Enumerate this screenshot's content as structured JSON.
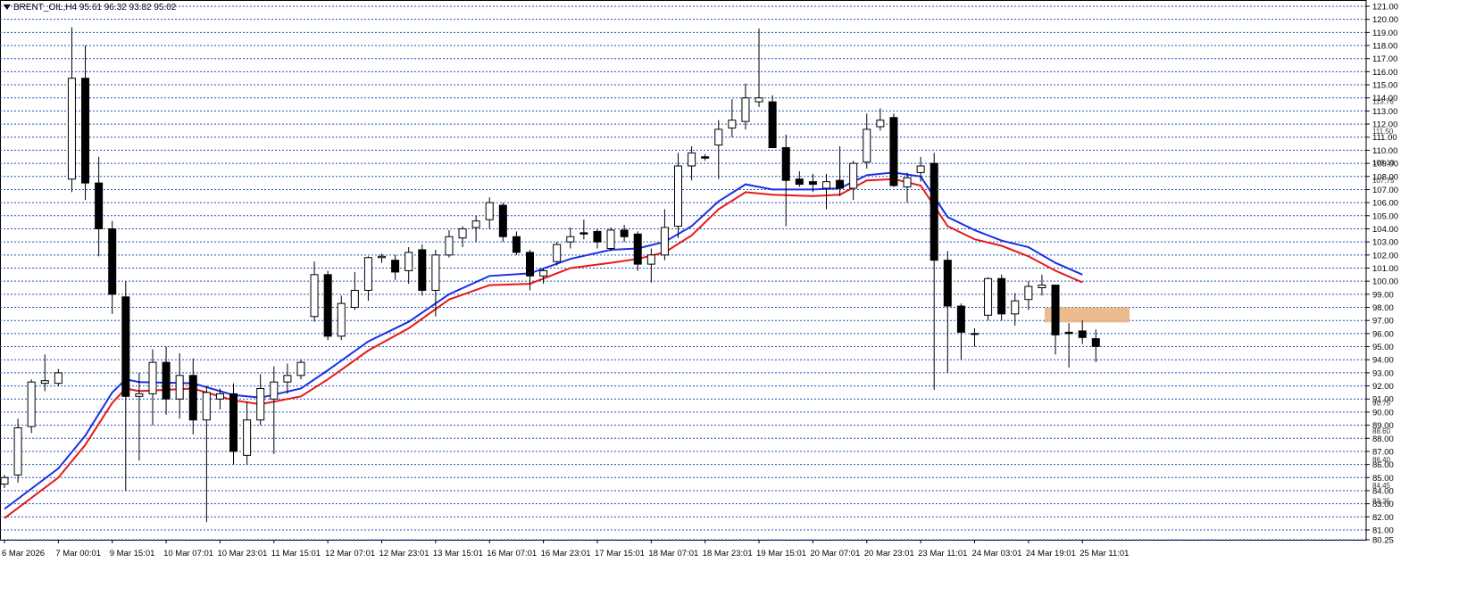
{
  "window": {
    "title": "BRENT_OIL,H4",
    "ohlc": "95.61 96.32 93.82 95.02"
  },
  "colors": {
    "background": "#ffffff",
    "grid": "#1f4fbf",
    "candle_border": "#000000",
    "bull_fill": "#ffffff",
    "bear_fill": "#000000",
    "ma_fast": "#1a2fe6",
    "ma_slow": "#e81818",
    "zone": "#e8b27a"
  },
  "chart_data": {
    "type": "candlestick",
    "symbol": "BRENT_OIL",
    "timeframe": "H4",
    "ylim": [
      80.25,
      121.0
    ],
    "grid": true,
    "y_ticks": [
      121.0,
      120.0,
      119.0,
      118.0,
      117.0,
      116.0,
      115.0,
      114.0,
      113.0,
      112.0,
      111.0,
      110.0,
      109.0,
      108.0,
      107.0,
      106.0,
      105.0,
      104.0,
      103.0,
      102.0,
      101.0,
      100.0,
      99.0,
      98.0,
      97.0,
      96.0,
      95.0,
      94.0,
      93.0,
      92.0,
      91.0,
      90.0,
      89.0,
      88.0,
      87.0,
      86.0,
      85.0,
      84.0,
      83.0,
      82.0,
      81.0,
      80.25
    ],
    "y_tick_labels": [
      "121.00",
      "120.00",
      "119.00",
      "118.00",
      "117.00",
      "116.00",
      "115.00",
      "114.00",
      "113.00",
      "112.00",
      "111.00",
      "110.00",
      "109.00",
      "108.00",
      "107.00",
      "106.00",
      "105.00",
      "104.00",
      "103.00",
      "102.00",
      "101.00",
      "100.00",
      "99.00",
      "98.00",
      "97.00",
      "96.00",
      "95.00",
      "94.00",
      "93.00",
      "92.00",
      "91.00",
      "90.00",
      "89.00",
      "88.00",
      "87.00",
      "86.00",
      "85.00",
      "84.00",
      "83.00",
      "82.00",
      "81.00",
      "80.25"
    ],
    "x_labels": [
      {
        "label": "6 Mar 2026",
        "bar": 0
      },
      {
        "label": "7 Mar 00:01",
        "bar": 4
      },
      {
        "label": "9 Mar 15:01",
        "bar": 8
      },
      {
        "label": "10 Mar 07:01",
        "bar": 12
      },
      {
        "label": "10 Mar 23:01",
        "bar": 16
      },
      {
        "label": "11 Mar 15:01",
        "bar": 20
      },
      {
        "label": "12 Mar 07:01",
        "bar": 24
      },
      {
        "label": "12 Mar 23:01",
        "bar": 28
      },
      {
        "label": "13 Mar 15:01",
        "bar": 32
      },
      {
        "label": "16 Mar 07:01",
        "bar": 36
      },
      {
        "label": "16 Mar 23:01",
        "bar": 40
      },
      {
        "label": "17 Mar 15:01",
        "bar": 44
      },
      {
        "label": "18 Mar 07:01",
        "bar": 48
      },
      {
        "label": "18 Mar 23:01",
        "bar": 52
      },
      {
        "label": "19 Mar 15:01",
        "bar": 56
      },
      {
        "label": "20 Mar 07:01",
        "bar": 60
      },
      {
        "label": "20 Mar 23:01",
        "bar": 64
      },
      {
        "label": "23 Mar 11:01",
        "bar": 68
      },
      {
        "label": "24 Mar 03:01",
        "bar": 72
      },
      {
        "label": "24 Mar 19:01",
        "bar": 76
      },
      {
        "label": "25 Mar 11:01",
        "bar": 80
      }
    ],
    "candles": [
      {
        "o": 84.5,
        "h": 85.2,
        "l": 84.2,
        "c": 85.0
      },
      {
        "o": 85.2,
        "h": 89.5,
        "l": 84.6,
        "c": 88.8
      },
      {
        "o": 88.9,
        "h": 92.5,
        "l": 88.4,
        "c": 92.3
      },
      {
        "o": 92.2,
        "h": 94.4,
        "l": 91.6,
        "c": 92.4
      },
      {
        "o": 92.2,
        "h": 93.3,
        "l": 92.0,
        "c": 93.0
      },
      {
        "o": 107.8,
        "h": 119.4,
        "l": 106.8,
        "c": 115.5
      },
      {
        "o": 115.5,
        "h": 118.0,
        "l": 106.2,
        "c": 107.5
      },
      {
        "o": 107.5,
        "h": 109.5,
        "l": 101.9,
        "c": 104.0
      },
      {
        "o": 104.0,
        "h": 104.6,
        "l": 97.5,
        "c": 99.0
      },
      {
        "o": 98.8,
        "h": 100.0,
        "l": 84.0,
        "c": 91.2
      },
      {
        "o": 91.2,
        "h": 93.0,
        "l": 86.3,
        "c": 91.4
      },
      {
        "o": 91.4,
        "h": 94.8,
        "l": 89.0,
        "c": 93.8
      },
      {
        "o": 93.8,
        "h": 95.0,
        "l": 89.8,
        "c": 91.0
      },
      {
        "o": 91.0,
        "h": 94.5,
        "l": 89.5,
        "c": 92.8
      },
      {
        "o": 92.8,
        "h": 94.1,
        "l": 88.3,
        "c": 89.4
      },
      {
        "o": 89.4,
        "h": 92.0,
        "l": 81.6,
        "c": 91.5
      },
      {
        "o": 91.0,
        "h": 91.8,
        "l": 90.2,
        "c": 91.4
      },
      {
        "o": 91.4,
        "h": 92.2,
        "l": 86.0,
        "c": 87.0
      },
      {
        "o": 86.7,
        "h": 90.8,
        "l": 86.0,
        "c": 89.4
      },
      {
        "o": 89.4,
        "h": 92.9,
        "l": 89.0,
        "c": 91.8
      },
      {
        "o": 91.0,
        "h": 93.5,
        "l": 86.8,
        "c": 92.3
      },
      {
        "o": 92.3,
        "h": 93.7,
        "l": 91.4,
        "c": 92.8
      },
      {
        "o": 92.8,
        "h": 94.0,
        "l": 92.5,
        "c": 93.8
      },
      {
        "o": 97.3,
        "h": 101.5,
        "l": 96.9,
        "c": 100.5
      },
      {
        "o": 100.5,
        "h": 100.8,
        "l": 95.5,
        "c": 95.8
      },
      {
        "o": 95.8,
        "h": 98.9,
        "l": 95.5,
        "c": 98.3
      },
      {
        "o": 98.0,
        "h": 100.7,
        "l": 97.8,
        "c": 99.3
      },
      {
        "o": 99.3,
        "h": 101.9,
        "l": 98.5,
        "c": 101.8
      },
      {
        "o": 101.8,
        "h": 102.1,
        "l": 101.4,
        "c": 101.9
      },
      {
        "o": 101.6,
        "h": 102.0,
        "l": 100.1,
        "c": 100.7
      },
      {
        "o": 100.8,
        "h": 102.6,
        "l": 99.8,
        "c": 102.2
      },
      {
        "o": 102.4,
        "h": 102.8,
        "l": 98.9,
        "c": 99.3
      },
      {
        "o": 99.3,
        "h": 102.4,
        "l": 97.3,
        "c": 102.0
      },
      {
        "o": 102.0,
        "h": 103.9,
        "l": 101.8,
        "c": 103.4
      },
      {
        "o": 103.3,
        "h": 104.2,
        "l": 102.6,
        "c": 104.0
      },
      {
        "o": 104.1,
        "h": 105.0,
        "l": 103.0,
        "c": 104.6
      },
      {
        "o": 104.7,
        "h": 106.4,
        "l": 104.0,
        "c": 106.0
      },
      {
        "o": 105.8,
        "h": 106.0,
        "l": 103.0,
        "c": 103.4
      },
      {
        "o": 103.4,
        "h": 103.8,
        "l": 102.0,
        "c": 102.2
      },
      {
        "o": 102.2,
        "h": 102.4,
        "l": 99.3,
        "c": 100.4
      },
      {
        "o": 100.4,
        "h": 101.0,
        "l": 99.8,
        "c": 100.8
      },
      {
        "o": 101.5,
        "h": 103.0,
        "l": 101.2,
        "c": 102.8
      },
      {
        "o": 103.0,
        "h": 104.1,
        "l": 102.5,
        "c": 103.4
      },
      {
        "o": 103.7,
        "h": 104.7,
        "l": 103.2,
        "c": 103.6
      },
      {
        "o": 103.8,
        "h": 104.0,
        "l": 102.5,
        "c": 103.0
      },
      {
        "o": 102.5,
        "h": 104.1,
        "l": 102.3,
        "c": 103.9
      },
      {
        "o": 103.9,
        "h": 104.3,
        "l": 103.0,
        "c": 103.4
      },
      {
        "o": 103.6,
        "h": 103.8,
        "l": 100.8,
        "c": 101.3
      },
      {
        "o": 101.3,
        "h": 102.5,
        "l": 99.9,
        "c": 102.0
      },
      {
        "o": 102.0,
        "h": 105.5,
        "l": 101.6,
        "c": 104.1
      },
      {
        "o": 104.2,
        "h": 109.8,
        "l": 103.3,
        "c": 108.8
      },
      {
        "o": 108.8,
        "h": 110.3,
        "l": 107.7,
        "c": 109.8
      },
      {
        "o": 109.5,
        "h": 109.7,
        "l": 109.2,
        "c": 109.4
      },
      {
        "o": 110.4,
        "h": 112.3,
        "l": 107.8,
        "c": 111.6
      },
      {
        "o": 111.7,
        "h": 113.9,
        "l": 111.0,
        "c": 112.3
      },
      {
        "o": 112.2,
        "h": 115.1,
        "l": 111.6,
        "c": 114.0
      },
      {
        "o": 113.7,
        "h": 119.3,
        "l": 113.3,
        "c": 114.0
      },
      {
        "o": 113.7,
        "h": 114.2,
        "l": 110.2,
        "c": 110.2
      },
      {
        "o": 110.2,
        "h": 111.2,
        "l": 104.2,
        "c": 107.7
      },
      {
        "o": 107.8,
        "h": 108.4,
        "l": 107.2,
        "c": 107.4
      },
      {
        "o": 107.6,
        "h": 108.2,
        "l": 106.8,
        "c": 107.4
      },
      {
        "o": 107.1,
        "h": 108.2,
        "l": 105.5,
        "c": 107.6
      },
      {
        "o": 107.7,
        "h": 110.3,
        "l": 106.5,
        "c": 107.1
      },
      {
        "o": 107.1,
        "h": 109.2,
        "l": 106.2,
        "c": 109.0
      },
      {
        "o": 109.1,
        "h": 112.8,
        "l": 108.6,
        "c": 111.6
      },
      {
        "o": 111.8,
        "h": 113.2,
        "l": 111.5,
        "c": 112.3
      },
      {
        "o": 112.5,
        "h": 112.8,
        "l": 107.2,
        "c": 107.3
      },
      {
        "o": 107.2,
        "h": 108.3,
        "l": 106.0,
        "c": 107.9
      },
      {
        "o": 108.3,
        "h": 109.5,
        "l": 107.6,
        "c": 108.8
      },
      {
        "o": 109.0,
        "h": 109.8,
        "l": 91.7,
        "c": 101.6
      },
      {
        "o": 101.6,
        "h": 102.3,
        "l": 93.0,
        "c": 98.1
      },
      {
        "o": 98.1,
        "h": 98.3,
        "l": 94.0,
        "c": 96.1
      },
      {
        "o": 96.0,
        "h": 96.4,
        "l": 95.0,
        "c": 96.0
      },
      {
        "o": 97.4,
        "h": 100.3,
        "l": 97.0,
        "c": 100.2
      },
      {
        "o": 100.2,
        "h": 100.5,
        "l": 97.0,
        "c": 97.5
      },
      {
        "o": 97.5,
        "h": 99.1,
        "l": 96.6,
        "c": 98.5
      },
      {
        "o": 98.6,
        "h": 100.0,
        "l": 97.8,
        "c": 99.6
      },
      {
        "o": 99.5,
        "h": 100.5,
        "l": 98.9,
        "c": 99.7
      },
      {
        "o": 99.7,
        "h": 99.7,
        "l": 94.4,
        "c": 95.9
      },
      {
        "o": 96.1,
        "h": 96.8,
        "l": 93.4,
        "c": 96.0
      },
      {
        "o": 96.2,
        "h": 97.0,
        "l": 95.2,
        "c": 95.7
      },
      {
        "o": 95.61,
        "h": 96.32,
        "l": 93.82,
        "c": 95.02
      }
    ],
    "ma_fast": [
      [
        0,
        82.6
      ],
      [
        4,
        85.7
      ],
      [
        6,
        88.2
      ],
      [
        8,
        91.5
      ],
      [
        9,
        92.5
      ],
      [
        10,
        92.3
      ],
      [
        14,
        92.2
      ],
      [
        17,
        91.3
      ],
      [
        19,
        91.1
      ],
      [
        22,
        91.8
      ],
      [
        24,
        93.2
      ],
      [
        27,
        95.4
      ],
      [
        30,
        96.9
      ],
      [
        33,
        99.0
      ],
      [
        36,
        100.4
      ],
      [
        39,
        100.6
      ],
      [
        42,
        101.7
      ],
      [
        45,
        102.4
      ],
      [
        47,
        102.5
      ],
      [
        49,
        103.0
      ],
      [
        51,
        104.2
      ],
      [
        53,
        106.1
      ],
      [
        55,
        107.4
      ],
      [
        57,
        107.0
      ],
      [
        60,
        107.0
      ],
      [
        62,
        107.1
      ],
      [
        64,
        108.1
      ],
      [
        66,
        108.3
      ],
      [
        68,
        108.0
      ],
      [
        70,
        104.9
      ],
      [
        72,
        103.9
      ],
      [
        74,
        103.1
      ],
      [
        76,
        102.6
      ],
      [
        78,
        101.4
      ],
      [
        80,
        100.5
      ]
    ],
    "ma_slow": [
      [
        0,
        81.9
      ],
      [
        4,
        85.0
      ],
      [
        6,
        87.5
      ],
      [
        8,
        90.7
      ],
      [
        9,
        91.8
      ],
      [
        10,
        91.6
      ],
      [
        14,
        91.8
      ],
      [
        17,
        90.9
      ],
      [
        19,
        90.6
      ],
      [
        22,
        91.2
      ],
      [
        24,
        92.5
      ],
      [
        27,
        94.7
      ],
      [
        30,
        96.4
      ],
      [
        33,
        98.6
      ],
      [
        36,
        99.7
      ],
      [
        39,
        99.8
      ],
      [
        42,
        101.0
      ],
      [
        45,
        101.4
      ],
      [
        47,
        101.7
      ],
      [
        49,
        102.2
      ],
      [
        51,
        103.5
      ],
      [
        53,
        105.5
      ],
      [
        55,
        106.8
      ],
      [
        57,
        106.6
      ],
      [
        60,
        106.5
      ],
      [
        62,
        106.6
      ],
      [
        64,
        107.7
      ],
      [
        66,
        107.8
      ],
      [
        68,
        107.3
      ],
      [
        70,
        104.2
      ],
      [
        72,
        103.2
      ],
      [
        74,
        102.7
      ],
      [
        76,
        101.9
      ],
      [
        78,
        100.8
      ],
      [
        80,
        99.9
      ]
    ],
    "zone": {
      "bar_start": 77.2,
      "bar_end": 83.5,
      "y_top": 98.0,
      "y_bottom": 96.85
    },
    "price_markers": [
      {
        "label": "113.76",
        "value": 113.76
      },
      {
        "label": "111.50",
        "value": 111.5
      },
      {
        "label": "109.10",
        "value": 109.1
      },
      {
        "label": "107.75",
        "value": 107.75
      },
      {
        "label": "90.75",
        "value": 90.75
      },
      {
        "label": "88.60",
        "value": 88.6
      },
      {
        "label": "86.40",
        "value": 86.4
      },
      {
        "label": "84.45",
        "value": 84.45
      },
      {
        "label": "83.25",
        "value": 83.25
      }
    ]
  }
}
